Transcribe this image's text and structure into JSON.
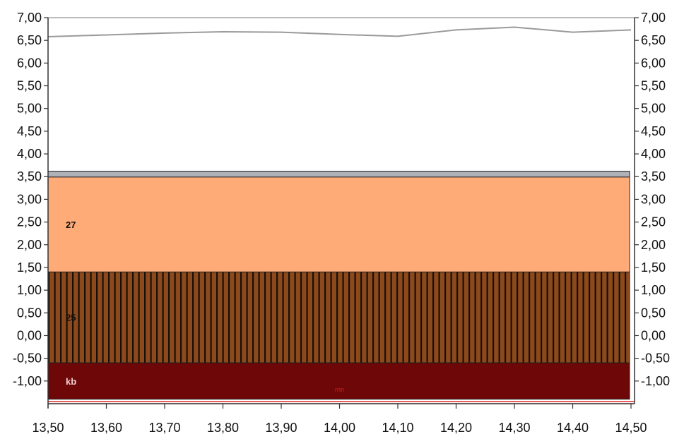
{
  "chart_data": {
    "type": "area",
    "xlim": [
      13.5,
      14.5
    ],
    "ylim": [
      -1.5,
      7.0
    ],
    "x_ticks": [
      13.5,
      13.6,
      13.7,
      13.8,
      13.9,
      14.0,
      14.1,
      14.2,
      14.3,
      14.4,
      14.5
    ],
    "x_tick_labels": [
      "13,50",
      "13,60",
      "13,70",
      "13,80",
      "13,90",
      "14,00",
      "14,10",
      "14,20",
      "14,30",
      "14,40",
      "14,50"
    ],
    "y_ticks": [
      7.0,
      6.5,
      6.0,
      5.5,
      5.0,
      4.5,
      4.0,
      3.5,
      3.0,
      2.5,
      2.0,
      1.5,
      1.0,
      0.5,
      0.0,
      -0.5,
      -1.0
    ],
    "y_tick_labels": [
      "7,00",
      "6,50",
      "6,00",
      "5,50",
      "5,00",
      "4,50",
      "4,00",
      "3,50",
      "3,00",
      "2,50",
      "2,00",
      "1,50",
      "1,00",
      "0,50",
      "0,00",
      "-0,50",
      "-1,00"
    ],
    "line_series": {
      "x": [
        13.5,
        13.6,
        13.7,
        13.8,
        13.9,
        14.0,
        14.1,
        14.2,
        14.3,
        14.4,
        14.5
      ],
      "y": [
        6.58,
        6.62,
        6.66,
        6.69,
        6.68,
        6.63,
        6.59,
        6.73,
        6.79,
        6.68,
        6.73
      ],
      "color": "#9a9a9a"
    },
    "layers": [
      {
        "label": "",
        "top": 3.62,
        "bottom": 3.49,
        "color": "#b0b0b8",
        "pattern": "solid"
      },
      {
        "label": "27",
        "top": 3.49,
        "bottom": 1.4,
        "color": "#ffab78",
        "pattern": "solid",
        "label_color": "#111111"
      },
      {
        "label": "25",
        "top": 1.4,
        "bottom": -0.6,
        "color": "#8c4a1c",
        "pattern": "vertical-stripes",
        "stripe_color": "#1a0f08",
        "label_color": "#111111"
      },
      {
        "label": "kb",
        "top": -0.6,
        "bottom": -1.4,
        "color": "#6e0707",
        "pattern": "solid",
        "label_color": "#f0d0d0"
      }
    ],
    "bottom_line": {
      "y": -1.45,
      "color": "#e83a3a"
    },
    "annotation": {
      "text": "rnn",
      "x": 14.0,
      "y": -1.17,
      "color": "#d02020"
    },
    "grid": false,
    "right_axis_mirror": true
  }
}
